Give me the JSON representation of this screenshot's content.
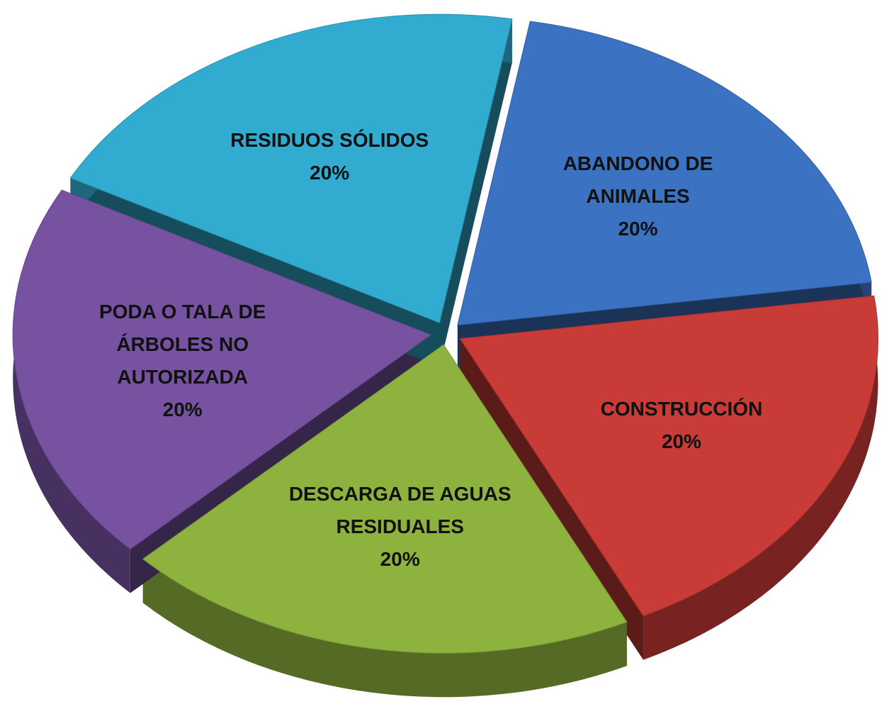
{
  "chart_data": {
    "type": "pie",
    "categories": [
      "ABANDONO DE ANIMALES",
      "CONSTRUCCIÓN",
      "DESCARGA DE AGUAS RESIDUALES",
      "PODA O TALA DE ÁRBOLES NO AUTORIZADA",
      "RESIDUOS SÓLIDOS"
    ],
    "values": [
      20,
      20,
      20,
      20,
      20
    ],
    "value_labels": [
      "20%",
      "20%",
      "20%",
      "20%",
      "20%"
    ],
    "colors": [
      "#3b72c2",
      "#c83b37",
      "#8db33e",
      "#7652a1",
      "#31abcf"
    ]
  }
}
